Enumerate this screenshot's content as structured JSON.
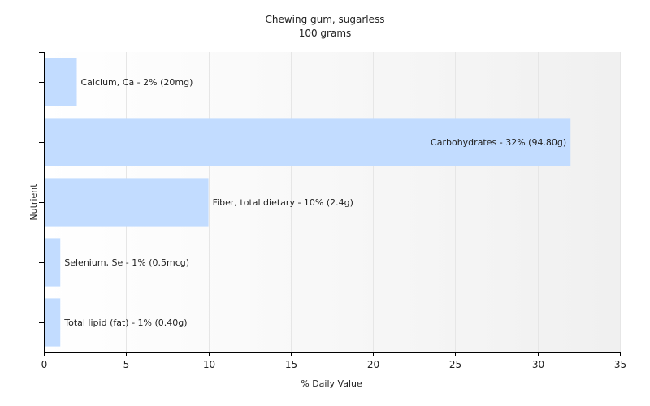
{
  "chart_data": {
    "type": "bar",
    "orientation": "horizontal",
    "title": "Chewing gum, sugarless",
    "subtitle": "100 grams",
    "xlabel": "% Daily Value",
    "ylabel": "Nutrient",
    "xlim": [
      0,
      35
    ],
    "xticks": [
      0,
      5,
      10,
      15,
      20,
      25,
      30,
      35
    ],
    "grid": true,
    "categories": [
      "Calcium, Ca",
      "Carbohydrates",
      "Fiber, total dietary",
      "Selenium, Se",
      "Total lipid (fat)"
    ],
    "values": [
      2,
      32,
      10,
      1,
      1
    ],
    "labels": [
      "Calcium, Ca - 2% (20mg)",
      "Carbohydrates - 32% (94.80g)",
      "Fiber, total dietary - 10% (2.4g)",
      "Selenium, Se - 1% (0.5mcg)",
      "Total lipid (fat) - 1% (0.40g)"
    ],
    "colors": {
      "bar": "#c2dcff",
      "grid": "#e6e6e6",
      "axis": "#000000",
      "plot_bg_start": "#ffffff",
      "plot_bg_end": "#f0f0f0"
    }
  }
}
